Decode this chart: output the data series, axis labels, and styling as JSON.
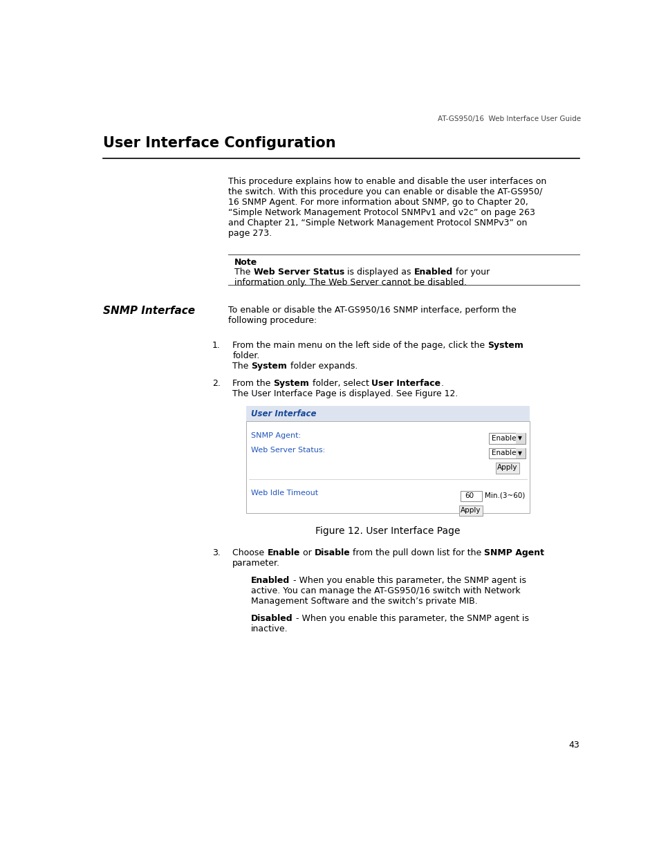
{
  "header_text": "AT-GS950/16  Web Interface User Guide",
  "title": "User Interface Configuration",
  "page_number": "43",
  "intro_lines": [
    "This procedure explains how to enable and disable the user interfaces on",
    "the switch. With this procedure you can enable or disable the AT-GS950/",
    "16 SNMP Agent. For more information about SNMP, go to Chapter 20,",
    "“Simple Network Management Protocol SNMPv1 and v2c” on page 263",
    "and Chapter 21, “Simple Network Management Protocol SNMPv3” on",
    "page 273."
  ],
  "note_label": "Note",
  "note_line1_parts": [
    [
      "The ",
      false
    ],
    [
      "Web Server Status",
      true
    ],
    [
      " is displayed as ",
      false
    ],
    [
      "Enabled",
      true
    ],
    [
      " for your",
      false
    ]
  ],
  "note_line2": "information only. The Web Server cannot be disabled.",
  "snmp_label": "SNMP Interface",
  "snmp_intro_lines": [
    "To enable or disable the AT-GS950/16 SNMP interface, perform the",
    "following procedure:"
  ],
  "step1_line1_parts": [
    [
      "From the main menu on the left side of the page, click the ",
      false
    ],
    [
      "System",
      true
    ],
    [
      "",
      false
    ]
  ],
  "step1_line2": "folder.",
  "step1_line3_parts": [
    [
      "The ",
      false
    ],
    [
      "System",
      true
    ],
    [
      " folder expands.",
      false
    ]
  ],
  "step2_line1_parts": [
    [
      "From the ",
      false
    ],
    [
      "System",
      true
    ],
    [
      " folder, select ",
      false
    ],
    [
      "User Interface",
      true
    ],
    [
      ".",
      false
    ]
  ],
  "step2_line2": "The User Interface Page is displayed. See Figure 12.",
  "figure_caption": "Figure 12. User Interface Page",
  "step3_line1_parts": [
    [
      "Choose ",
      false
    ],
    [
      "Enable",
      true
    ],
    [
      " or ",
      false
    ],
    [
      "Disable",
      true
    ],
    [
      " from the pull down list for the ",
      false
    ],
    [
      "SNMP Agent",
      true
    ]
  ],
  "step3_line2": "parameter.",
  "enabled_parts": [
    [
      "Enabled",
      true
    ],
    [
      " - When you enable this parameter, the SNMP agent is",
      false
    ]
  ],
  "enabled_line2": "active. You can manage the AT-GS950/16 switch with Network",
  "enabled_line3": "Management Software and the switch’s private MIB.",
  "disabled_parts": [
    [
      "Disabled",
      true
    ],
    [
      " - When you enable this parameter, the SNMP agent is",
      false
    ]
  ],
  "disabled_line2": "inactive.",
  "ui_header_bg": "#dde4f0",
  "ui_header_text_color": "#1a4a9a",
  "ui_label_color": "#2255bb",
  "ui_title": "User Interface",
  "ui_fields": [
    "SNMP Agent:",
    "Web Server Status:"
  ],
  "ui_timeout_label": "Web Idle Timeout",
  "ui_timeout_value": "60",
  "ui_timeout_unit": "Min.(3~60)"
}
